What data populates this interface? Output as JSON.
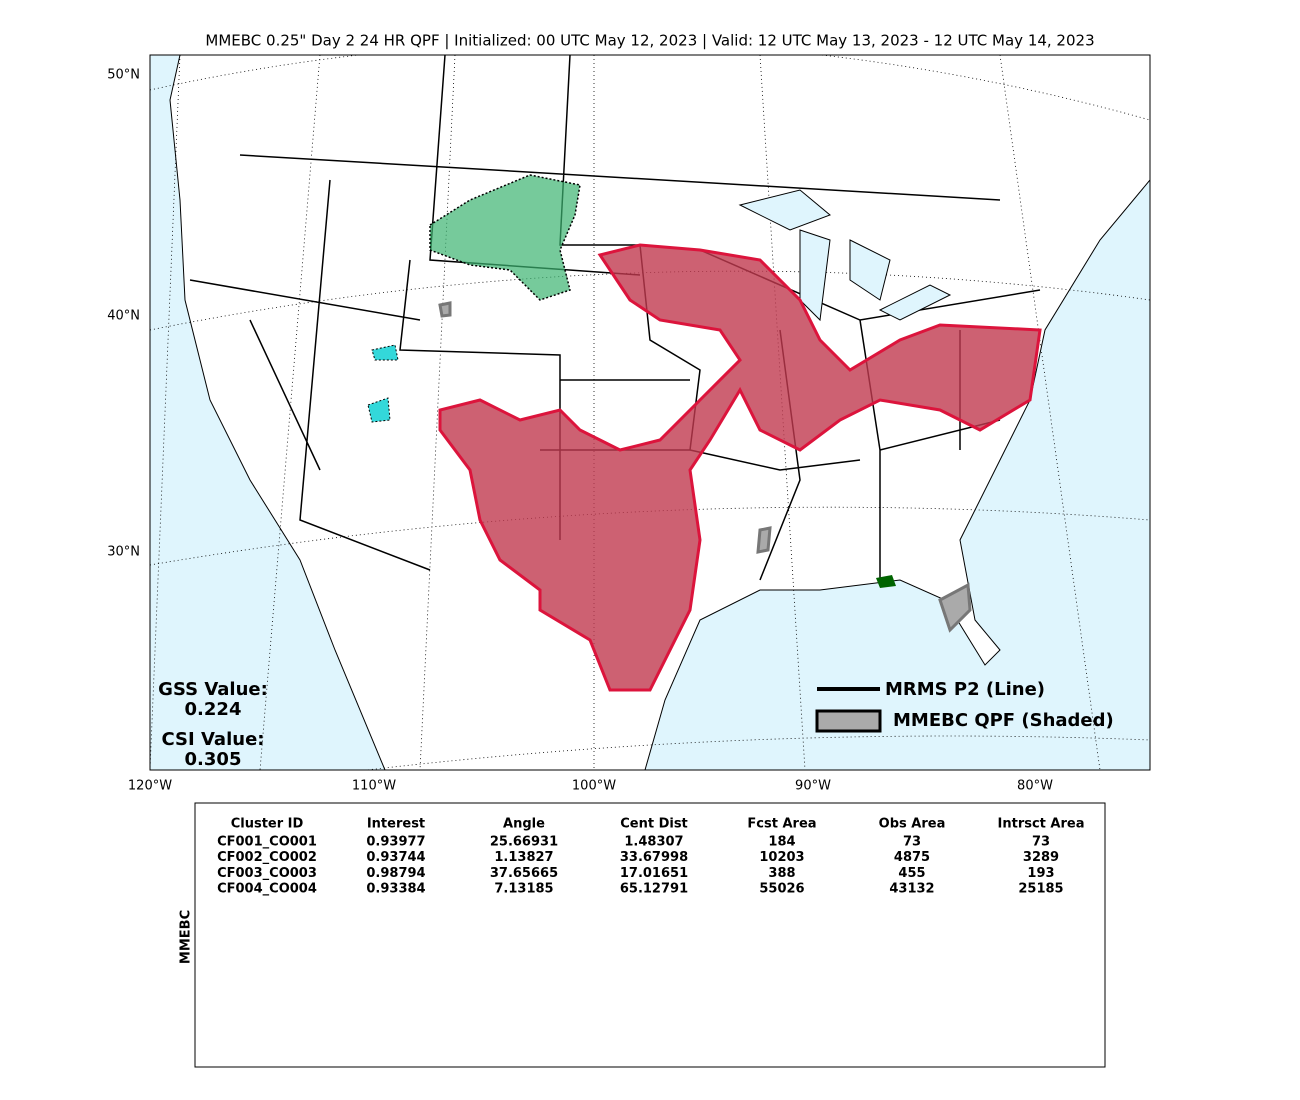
{
  "title": "MMEBC 0.25\" Day 2 24 HR QPF | Initialized: 00 UTC May 12, 2023 | Valid: 12 UTC May 13, 2023 - 12 UTC May 14, 2023",
  "map": {
    "lat_labels": [
      "50°N",
      "40°N",
      "30°N"
    ],
    "lon_labels": [
      "120°W",
      "110°W",
      "100°W",
      "90°W",
      "80°W"
    ]
  },
  "stats": {
    "gss_label": "GSS Value:",
    "gss": 0.224,
    "csi_label": "CSI Value:",
    "csi": 0.305
  },
  "legend": [
    "MRMS P2 (Line)",
    "MMEBC QPF (Shaded)"
  ],
  "table": {
    "side_label": "MMEBC",
    "columns": [
      "Cluster ID",
      "Interest",
      "Angle",
      "Cent Dist",
      "Fcst Area",
      "Obs Area",
      "Intrsct Area"
    ],
    "row_colors": [
      "#006400",
      "#3cb371",
      "#00ced1",
      "#dc143c"
    ],
    "rows": [
      [
        "CF001_CO001",
        0.93977,
        25.66931,
        1.48307,
        184,
        73,
        73
      ],
      [
        "CF002_CO002",
        0.93744,
        1.13827,
        33.67998,
        10203,
        4875,
        3289
      ],
      [
        "CF003_CO003",
        0.98794,
        37.65665,
        17.01651,
        388,
        455,
        193
      ],
      [
        "CF004_CO004",
        0.93384,
        7.13185,
        65.12791,
        55026,
        43132,
        25185
      ]
    ]
  }
}
